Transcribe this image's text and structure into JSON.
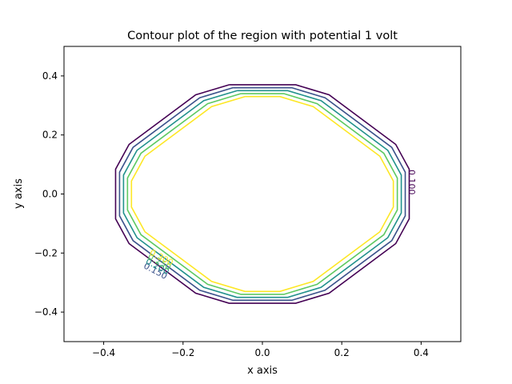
{
  "chart_data": {
    "type": "line",
    "title": "Contour plot of the region with potential 1 volt",
    "xlabel": "x axis",
    "ylabel": "y axis",
    "xlim": [
      -0.5,
      0.5
    ],
    "ylim": [
      -0.5,
      0.5
    ],
    "xticks": [
      -0.4,
      -0.2,
      0.0,
      0.2,
      0.4
    ],
    "xtick_labels": [
      "−0.4",
      "−0.2",
      "0.0",
      "0.2",
      "0.4"
    ],
    "yticks": [
      -0.4,
      -0.2,
      0.0,
      0.2,
      0.4
    ],
    "ytick_labels": [
      "−0.4",
      "−0.2",
      "0.0",
      "0.2",
      "0.4"
    ],
    "grid": false,
    "legend": "none",
    "base_outline_x": [
      -0.084,
      0.084,
      0.168,
      0.168,
      0.336,
      0.336,
      0.37,
      0.37,
      0.336,
      0.336,
      0.168,
      0.168,
      0.084,
      -0.084,
      -0.168,
      -0.168,
      -0.336,
      -0.336,
      -0.37,
      -0.37,
      -0.336,
      -0.336,
      -0.168,
      -0.168,
      -0.084
    ],
    "base_outline_y": [
      0.37,
      0.37,
      0.336,
      0.336,
      0.168,
      0.168,
      0.084,
      -0.084,
      -0.168,
      -0.168,
      -0.336,
      -0.336,
      -0.37,
      -0.37,
      -0.336,
      -0.336,
      -0.168,
      -0.168,
      -0.084,
      0.084,
      0.168,
      0.168,
      0.336,
      0.336,
      0.37
    ],
    "series": [
      {
        "level": 0.1,
        "inset": 0.0,
        "color": "#440154"
      },
      {
        "level": 0.15,
        "inset": 0.01,
        "color": "#3b528b"
      },
      {
        "level": 0.2,
        "inset": 0.02,
        "color": "#21918c"
      },
      {
        "level": 0.25,
        "inset": 0.03,
        "color": "#5ec962"
      },
      {
        "level": 0.3,
        "inset": 0.04,
        "color": "#fde725"
      }
    ],
    "contour_labels": [
      {
        "text": "0.100",
        "x": 0.375,
        "y": 0.04,
        "rotate": 90,
        "color": "#440154"
      },
      {
        "text": "0.150",
        "x": -0.27,
        "y": -0.262,
        "rotate": 28,
        "color": "#3b528b"
      },
      {
        "text": "0.200",
        "x": -0.265,
        "y": -0.247,
        "rotate": 28,
        "color": "#21918c"
      },
      {
        "text": "0.250",
        "x": -0.26,
        "y": -0.232,
        "rotate": 28,
        "color": "#5ec962"
      },
      {
        "text": "0.300",
        "x": -0.255,
        "y": -0.217,
        "rotate": 28,
        "color": "#fde725"
      }
    ]
  }
}
